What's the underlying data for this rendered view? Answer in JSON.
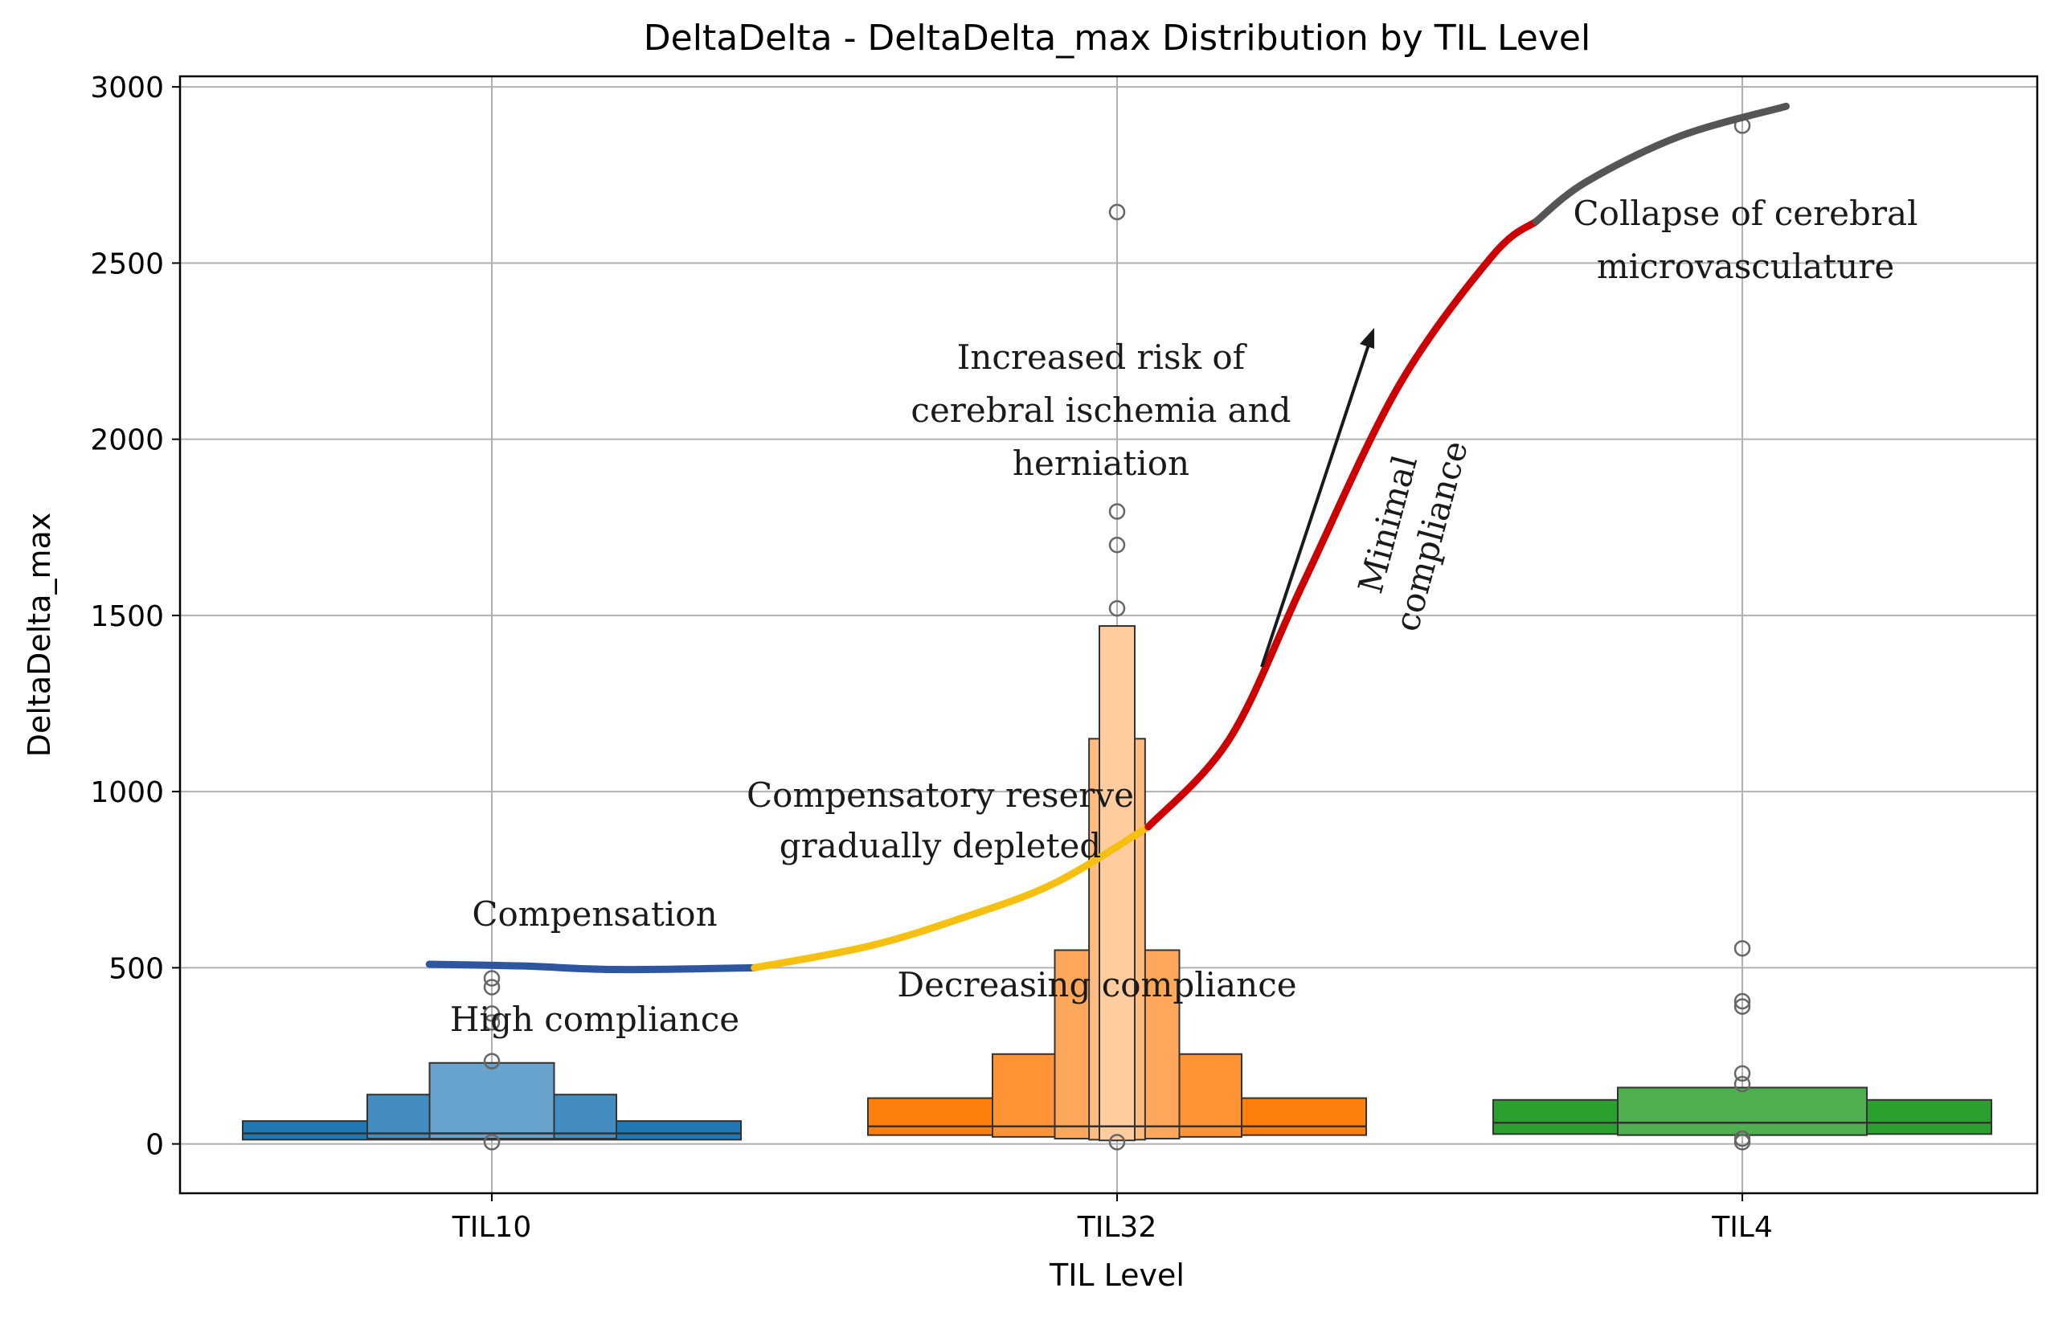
{
  "chart_data": {
    "type": "boxen",
    "title": "DeltaDelta - DeltaDelta_max Distribution by TIL Level",
    "xlabel": "TIL Level",
    "ylabel": "DeltaDelta_max",
    "ylim": [
      -140,
      3030
    ],
    "yticks": [
      0,
      500,
      1000,
      1500,
      2000,
      2500,
      3000
    ],
    "grid": true,
    "categories": [
      "TIL10",
      "TIL32",
      "TIL4"
    ],
    "series": [
      {
        "category": "TIL10",
        "color": "#1f77b4",
        "median": 30,
        "levels": [
          [
            12,
            65
          ],
          [
            15,
            140
          ],
          [
            15,
            230
          ]
        ],
        "outliers": [
          5,
          235,
          345,
          370,
          445,
          470
        ]
      },
      {
        "category": "TIL32",
        "color": "#ff7f0e",
        "median": 50,
        "levels": [
          [
            25,
            130
          ],
          [
            20,
            255
          ],
          [
            15,
            550
          ],
          [
            12,
            1150
          ],
          [
            10,
            1470
          ]
        ],
        "outliers": [
          5,
          1520,
          1700,
          1795,
          2645
        ]
      },
      {
        "category": "TIL4",
        "color": "#2ca02c",
        "median": 60,
        "levels": [
          [
            28,
            125
          ],
          [
            25,
            160
          ]
        ],
        "outliers": [
          5,
          15,
          170,
          200,
          390,
          405,
          555,
          2890
        ]
      }
    ],
    "overlay_curve": {
      "x": [
        -0.1,
        0.05,
        0.2,
        0.42,
        0.6,
        0.75,
        0.9,
        1.05,
        1.18,
        1.3,
        1.45,
        1.6,
        1.75,
        1.9,
        2.07
      ],
      "y": [
        510,
        505,
        495,
        500,
        560,
        640,
        740,
        900,
        1150,
        1600,
        2150,
        2520,
        2730,
        2860,
        2945
      ],
      "segments": [
        {
          "from": -0.1,
          "to": 0.42,
          "color": "#2d55a0"
        },
        {
          "from": 0.42,
          "to": 1.05,
          "color": "#f5c010"
        },
        {
          "from": 1.05,
          "to": 1.67,
          "color": "#cc0000"
        },
        {
          "from": 1.67,
          "to": 2.07,
          "color": "#555555"
        }
      ]
    },
    "annotations": [
      {
        "id": "compensation",
        "text": "Compensation"
      },
      {
        "id": "high-compliance",
        "text": "High compliance"
      },
      {
        "id": "compensatory-1",
        "text": "Compensatory reserve"
      },
      {
        "id": "compensatory-2",
        "text": "gradually depleted"
      },
      {
        "id": "decreasing",
        "text": "Decreasing compliance"
      },
      {
        "id": "risk-1",
        "text": "Increased risk of"
      },
      {
        "id": "risk-2",
        "text": "cerebral ischemia and"
      },
      {
        "id": "risk-3",
        "text": "herniation"
      },
      {
        "id": "minimal-1",
        "text": "Minimal"
      },
      {
        "id": "minimal-2",
        "text": "compliance"
      },
      {
        "id": "collapse-1",
        "text": "Collapse of cerebral"
      },
      {
        "id": "collapse-2",
        "text": "microvasculature"
      }
    ]
  }
}
